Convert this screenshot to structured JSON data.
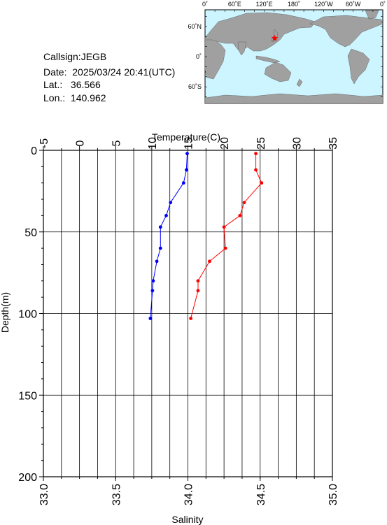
{
  "station": {
    "callsign_label": "Callsign:",
    "callsign": "JEGB",
    "date_label": "Date:",
    "date": "2025/03/24 20:41(UTC)",
    "lat_label": "Lat.:",
    "lat": "36.566",
    "lon_label": "Lon.:",
    "lon": "140.962"
  },
  "map": {
    "top_labels": [
      "0˚",
      "60˚E",
      "120˚E",
      "180˚",
      "120˚W",
      "60˚W",
      "0˚"
    ],
    "left_labels": [
      "60˚N",
      "0˚",
      "60˚S"
    ],
    "ocean_color": "#ccf5ff",
    "land_color": "#a0a0a0",
    "marker_color": "#ff0000",
    "marker_lon": 140.962,
    "marker_lat": 36.566
  },
  "chart_data": {
    "type": "line",
    "ylabel": "Depth(m)",
    "ylim": [
      200,
      0
    ],
    "yticks": [
      0,
      50,
      100,
      150,
      200
    ],
    "temperature_axis": {
      "label": "Temperature(C)",
      "lim": [
        -5,
        35
      ],
      "ticks": [
        -5,
        0,
        5,
        10,
        15,
        20,
        25,
        30,
        35
      ]
    },
    "salinity_axis": {
      "label": "Salinity",
      "lim": [
        33.0,
        35.0
      ],
      "ticks": [
        "33.0",
        "33.5",
        "34.0",
        "34.5",
        "35.0"
      ]
    },
    "grid": true,
    "series": [
      {
        "color": "#0000ff",
        "axis": "temperature",
        "points": [
          [
            14.9,
            2
          ],
          [
            14.8,
            12
          ],
          [
            14.4,
            20
          ],
          [
            12.6,
            32
          ],
          [
            12.0,
            40
          ],
          [
            11.2,
            47
          ],
          [
            11.2,
            60
          ],
          [
            10.7,
            68
          ],
          [
            10.2,
            80
          ],
          [
            10.1,
            86
          ],
          [
            9.8,
            103
          ]
        ]
      },
      {
        "color": "#ff0000",
        "axis": "salinity",
        "points": [
          [
            34.47,
            2
          ],
          [
            34.47,
            12
          ],
          [
            34.51,
            20
          ],
          [
            34.39,
            32
          ],
          [
            34.36,
            40
          ],
          [
            34.25,
            47
          ],
          [
            34.26,
            60
          ],
          [
            34.15,
            68
          ],
          [
            34.07,
            80
          ],
          [
            34.07,
            86
          ],
          [
            34.02,
            103
          ]
        ]
      }
    ]
  }
}
